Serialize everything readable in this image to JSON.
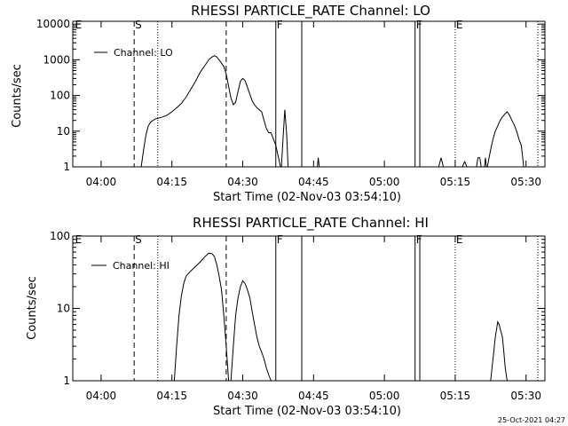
{
  "footer": {
    "timestamp": "25-Oct-2021 04:27"
  },
  "chart_data": [
    {
      "type": "line",
      "title": "RHESSI PARTICLE_RATE Channel: LO",
      "xlabel": "Start Time (02-Nov-03 03:54:10)",
      "ylabel": "Counts/sec",
      "xlim": [
        0,
        100
      ],
      "ylim": [
        1,
        12000
      ],
      "yscale": "log",
      "x_ticks": [
        {
          "x": 6,
          "label": "04:00"
        },
        {
          "x": 21,
          "label": "04:15"
        },
        {
          "x": 36,
          "label": "04:30"
        },
        {
          "x": 51,
          "label": "04:45"
        },
        {
          "x": 66,
          "label": "05:00"
        },
        {
          "x": 81,
          "label": "05:15"
        },
        {
          "x": 96,
          "label": "05:30"
        }
      ],
      "y_ticks": [
        {
          "y": 1,
          "label": "1"
        },
        {
          "y": 10,
          "label": "10"
        },
        {
          "y": 100,
          "label": "100"
        },
        {
          "y": 1000,
          "label": "1000"
        },
        {
          "y": 10000,
          "label": "10000"
        }
      ],
      "legend": {
        "label": "Channel: LO",
        "placement": "top-left"
      },
      "markers": [
        {
          "x": 0.3,
          "label": "E",
          "style": "none"
        },
        {
          "x": 13,
          "label": "S",
          "style": "dashed"
        },
        {
          "x": 18,
          "label": "",
          "style": "dotted"
        },
        {
          "x": 32.5,
          "label": "",
          "style": "dashed"
        },
        {
          "x": 43,
          "label": "F",
          "style": "solid"
        },
        {
          "x": 48.5,
          "label": "",
          "style": "solid"
        },
        {
          "x": 72.5,
          "label": "F",
          "style": "solid"
        },
        {
          "x": 73.5,
          "label": "",
          "style": "solid"
        },
        {
          "x": 81,
          "label": "E",
          "style": "dotted"
        },
        {
          "x": 98.5,
          "label": "",
          "style": "dotted"
        }
      ],
      "series": [
        {
          "segments": [
            [
              [
                14.5,
                1
              ],
              [
                15,
                3
              ],
              [
                15.5,
                8
              ],
              [
                16,
                14
              ],
              [
                16.5,
                18
              ],
              [
                17,
                20
              ],
              [
                17.5,
                22
              ],
              [
                18,
                23
              ],
              [
                19,
                25
              ],
              [
                20,
                28
              ],
              [
                21,
                35
              ],
              [
                22,
                45
              ],
              [
                23,
                60
              ],
              [
                24,
                90
              ],
              [
                25,
                150
              ],
              [
                26,
                250
              ],
              [
                27,
                450
              ],
              [
                28,
                700
              ],
              [
                28.8,
                1000
              ],
              [
                29.5,
                1200
              ],
              [
                30,
                1300
              ],
              [
                30.5,
                1200
              ],
              [
                31,
                1000
              ],
              [
                31.5,
                800
              ],
              [
                32,
                650
              ],
              [
                32.5,
                400
              ],
              [
                33,
                180
              ],
              [
                33.5,
                85
              ],
              [
                34,
                55
              ],
              [
                34.5,
                65
              ],
              [
                35,
                130
              ],
              [
                35.5,
                250
              ],
              [
                36,
                300
              ],
              [
                36.5,
                260
              ],
              [
                37,
                170
              ],
              [
                37.5,
                110
              ],
              [
                38,
                70
              ],
              [
                38.5,
                55
              ],
              [
                39,
                45
              ],
              [
                39.5,
                40
              ],
              [
                40,
                35
              ],
              [
                40.5,
                20
              ],
              [
                41,
                12
              ],
              [
                41.5,
                9
              ],
              [
                42,
                9
              ],
              [
                42.5,
                6
              ],
              [
                43,
                4
              ],
              [
                43.5,
                2
              ],
              [
                44,
                1
              ]
            ],
            [
              [
                44.2,
                1
              ],
              [
                44.5,
                5
              ],
              [
                44.9,
                40
              ],
              [
                45.3,
                8
              ],
              [
                45.6,
                1
              ]
            ],
            [
              [
                51.8,
                1
              ],
              [
                52,
                1.8
              ],
              [
                52.2,
                1
              ]
            ],
            [
              [
                77.5,
                1
              ],
              [
                78,
                1.8
              ],
              [
                78.5,
                1
              ]
            ],
            [
              [
                82.5,
                1
              ],
              [
                83,
                1.4
              ],
              [
                83.5,
                1
              ]
            ],
            [
              [
                85.5,
                1
              ],
              [
                85.8,
                1.8
              ],
              [
                86.2,
                1.8
              ],
              [
                86.5,
                1
              ]
            ],
            [
              [
                87.2,
                1
              ],
              [
                87.4,
                1.8
              ],
              [
                87.6,
                1
              ]
            ],
            [
              [
                87.8,
                1
              ],
              [
                88.5,
                3
              ],
              [
                89,
                6
              ],
              [
                89.5,
                10
              ],
              [
                90,
                14
              ],
              [
                90.5,
                20
              ],
              [
                91,
                25
              ],
              [
                91.5,
                30
              ],
              [
                92,
                35
              ],
              [
                92.5,
                28
              ],
              [
                93,
                20
              ],
              [
                93.5,
                15
              ],
              [
                94,
                10
              ],
              [
                94.5,
                6
              ],
              [
                95,
                4
              ],
              [
                95.5,
                1
              ]
            ]
          ]
        }
      ]
    },
    {
      "type": "line",
      "title": "RHESSI PARTICLE_RATE Channel: HI",
      "xlabel": "Start Time (02-Nov-03 03:54:10)",
      "ylabel": "Counts/sec",
      "xlim": [
        0,
        100
      ],
      "ylim": [
        1,
        100
      ],
      "yscale": "log",
      "x_ticks": [
        {
          "x": 6,
          "label": "04:00"
        },
        {
          "x": 21,
          "label": "04:15"
        },
        {
          "x": 36,
          "label": "04:30"
        },
        {
          "x": 51,
          "label": "04:45"
        },
        {
          "x": 66,
          "label": "05:00"
        },
        {
          "x": 81,
          "label": "05:15"
        },
        {
          "x": 96,
          "label": "05:30"
        }
      ],
      "y_ticks": [
        {
          "y": 1,
          "label": "1"
        },
        {
          "y": 10,
          "label": "10"
        },
        {
          "y": 100,
          "label": "100"
        }
      ],
      "legend": {
        "label": "Channel: HI",
        "placement": "top-left"
      },
      "markers": [
        {
          "x": 0.3,
          "label": "E",
          "style": "none"
        },
        {
          "x": 13,
          "label": "S",
          "style": "dashed"
        },
        {
          "x": 18,
          "label": "",
          "style": "dotted"
        },
        {
          "x": 32.5,
          "label": "",
          "style": "dashed"
        },
        {
          "x": 43,
          "label": "F",
          "style": "solid"
        },
        {
          "x": 48.5,
          "label": "",
          "style": "solid"
        },
        {
          "x": 72.5,
          "label": "F",
          "style": "solid"
        },
        {
          "x": 73.5,
          "label": "",
          "style": "solid"
        },
        {
          "x": 81,
          "label": "E",
          "style": "dotted"
        },
        {
          "x": 98.5,
          "label": "",
          "style": "dotted"
        }
      ],
      "series": [
        {
          "segments": [
            [
              [
                21.5,
                1
              ],
              [
                22,
                3
              ],
              [
                22.5,
                8
              ],
              [
                23,
                15
              ],
              [
                23.5,
                22
              ],
              [
                24,
                28
              ],
              [
                25,
                33
              ],
              [
                26,
                38
              ],
              [
                27,
                44
              ],
              [
                28,
                52
              ],
              [
                28.8,
                58
              ],
              [
                29.5,
                57
              ],
              [
                30,
                52
              ],
              [
                30.5,
                40
              ],
              [
                31,
                28
              ],
              [
                31.5,
                18
              ],
              [
                32,
                8
              ],
              [
                32.5,
                3
              ],
              [
                33,
                1
              ]
            ],
            [
              [
                33.5,
                1
              ],
              [
                34,
                3
              ],
              [
                34.5,
                8
              ],
              [
                35,
                14
              ],
              [
                35.5,
                20
              ],
              [
                36,
                24
              ],
              [
                36.5,
                22
              ],
              [
                37,
                18
              ],
              [
                37.5,
                14
              ],
              [
                38,
                9
              ],
              [
                38.5,
                6
              ],
              [
                39,
                4
              ],
              [
                39.5,
                3
              ],
              [
                40,
                2.5
              ],
              [
                40.5,
                2
              ],
              [
                41,
                1.5
              ],
              [
                41.5,
                1.2
              ],
              [
                42,
                1
              ]
            ],
            [
              [
                88.5,
                1
              ],
              [
                89,
                2
              ],
              [
                89.5,
                4
              ],
              [
                90,
                6.5
              ],
              [
                90.3,
                6
              ],
              [
                90.6,
                5
              ],
              [
                91,
                4
              ],
              [
                91.3,
                2.5
              ],
              [
                91.6,
                1.5
              ],
              [
                92,
                1
              ]
            ]
          ]
        }
      ]
    }
  ]
}
